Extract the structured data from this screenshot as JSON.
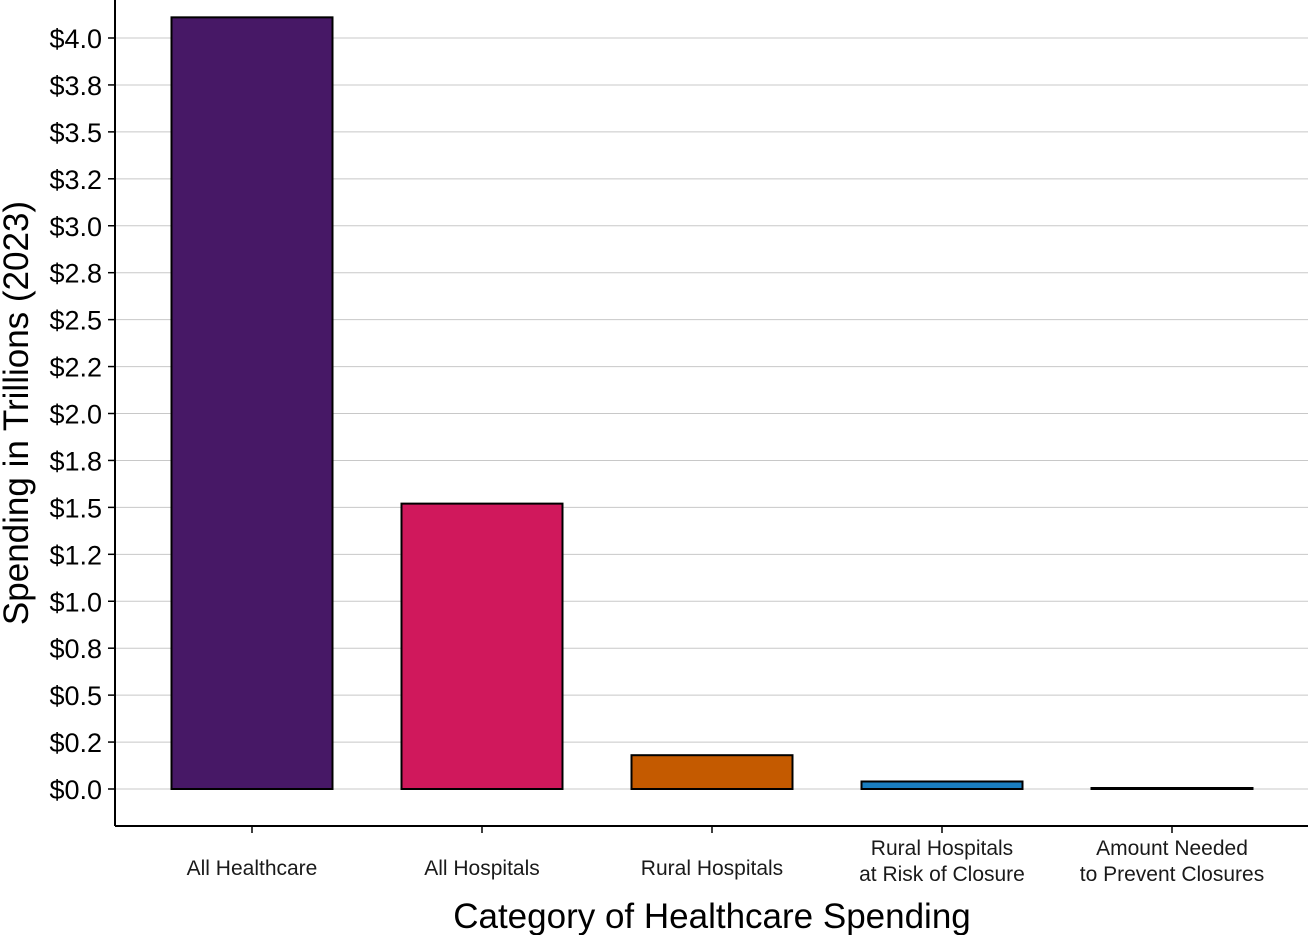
{
  "chart_data": {
    "type": "bar",
    "categories": [
      [
        "All Healthcare"
      ],
      [
        "All Hospitals"
      ],
      [
        "Rural Hospitals"
      ],
      [
        "Rural Hospitals",
        "at Risk of Closure"
      ],
      [
        "Amount Needed",
        "to Prevent Closures"
      ]
    ],
    "values": [
      4.11,
      1.52,
      0.18,
      0.04,
      0.003
    ],
    "colors": [
      "#471866",
      "#d0185c",
      "#c45a00",
      "#1a7ec0",
      "#1a1a1a"
    ],
    "yticks": [
      "$0.0",
      "$0.2",
      "$0.5",
      "$0.8",
      "$1.0",
      "$1.2",
      "$1.5",
      "$1.8",
      "$2.0",
      "$2.2",
      "$2.5",
      "$2.8",
      "$3.0",
      "$3.2",
      "$3.5",
      "$3.8",
      "$4.0"
    ],
    "ytick_values": [
      0,
      0.25,
      0.5,
      0.75,
      1.0,
      1.25,
      1.5,
      1.75,
      2.0,
      2.25,
      2.5,
      2.75,
      3.0,
      3.25,
      3.5,
      3.75,
      4.0
    ],
    "ylim": [
      -0.2,
      4.2
    ],
    "xlabel": "Category of Healthcare Spending",
    "ylabel": "Spending in Trillions (2023)",
    "grid": "horizontal",
    "legend": "none"
  }
}
